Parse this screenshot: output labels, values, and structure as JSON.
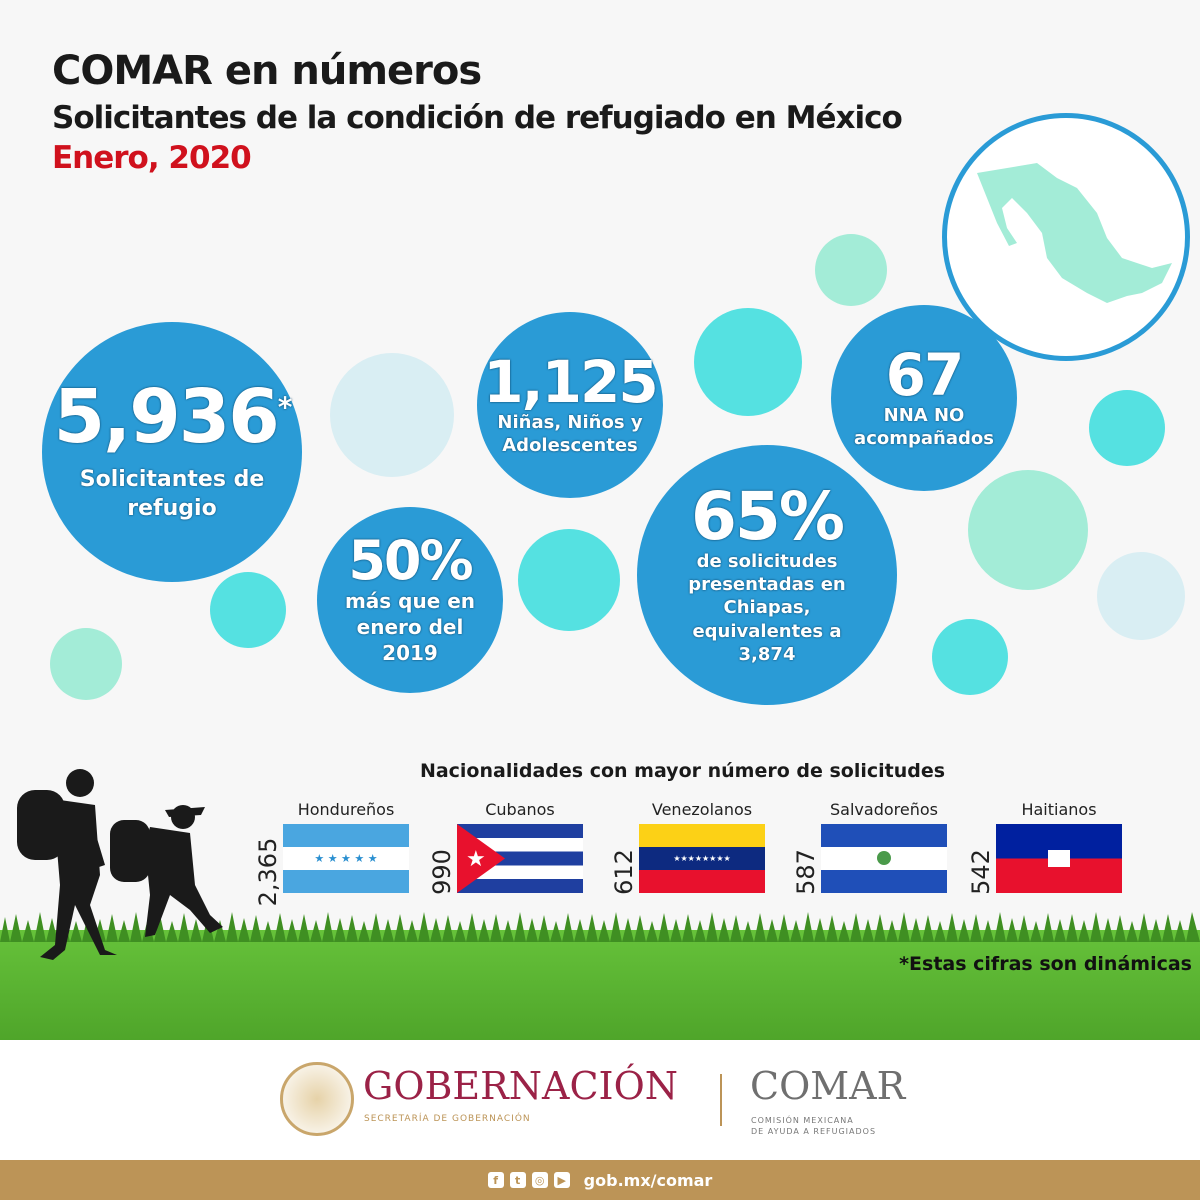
{
  "header": {
    "title": "COMAR en números",
    "subtitle": "Solicitantes de la condición de refugiado en México",
    "date": "Enero, 2020"
  },
  "stats": {
    "total": {
      "value": "5,936",
      "mark": "*",
      "label": "Solicitantes de refugio"
    },
    "minors": {
      "value": "1,125",
      "label": "Niñas, Niños y Adolescentes"
    },
    "unaccompanied": {
      "value": "67",
      "label": "NNA NO acompañados"
    },
    "increase": {
      "value": "50%",
      "label": "más que en enero del 2019"
    },
    "chiapas": {
      "value": "65%",
      "label": "de solicitudes presentadas en Chiapas, equivalentes a",
      "amount": "3,874"
    }
  },
  "nationalities": {
    "title": "Nacionalidades con mayor número de solicitudes",
    "items": [
      {
        "label": "Hondureños",
        "value": "2,365",
        "flag": "honduras"
      },
      {
        "label": "Cubanos",
        "value": "990",
        "flag": "cuba"
      },
      {
        "label": "Venezolanos",
        "value": "612",
        "flag": "venezuela"
      },
      {
        "label": "Salvadoreños",
        "value": "587",
        "flag": "el-salvador"
      },
      {
        "label": "Haitianos",
        "value": "542",
        "flag": "haiti"
      }
    ]
  },
  "note": "*Estas cifras son dinámicas",
  "footer": {
    "gob": "GOBERNACIÓN",
    "gob_sub": "SECRETARÍA DE GOBERNACIÓN",
    "comar": "COMAR",
    "comar_sub1": "COMISIÓN MEXICANA",
    "comar_sub2": "DE AYUDA A REFUGIADOS",
    "url": "gob.mx/comar",
    "social": [
      "facebook-icon",
      "twitter-icon",
      "instagram-icon",
      "youtube-icon"
    ]
  },
  "colors": {
    "blue": "#2a9bd6",
    "red": "#d0111d",
    "gold": "#bc9457",
    "maroon": "#9b2247"
  }
}
